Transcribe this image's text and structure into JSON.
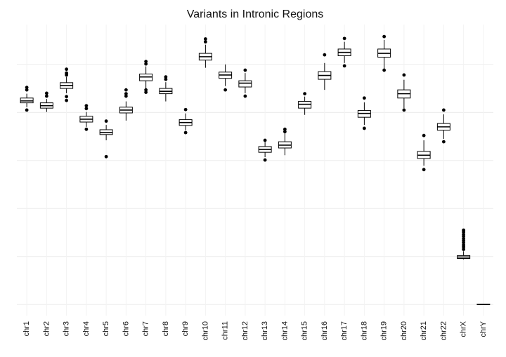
{
  "chart_data": {
    "type": "box",
    "title": "Variants in Intronic Regions",
    "categories": [
      "chr1",
      "chr2",
      "chr3",
      "chr4",
      "chr5",
      "chr6",
      "chr7",
      "chr8",
      "chr9",
      "chr10",
      "chr11",
      "chr12",
      "chr13",
      "chr14",
      "chr15",
      "chr16",
      "chr17",
      "chr18",
      "chr19",
      "chr20",
      "chr21",
      "chr22",
      "chrX",
      "chrY"
    ],
    "boxes": [
      {
        "low": 4.11,
        "q1": 4.2,
        "median": 4.24,
        "q3": 4.3,
        "high": 4.39,
        "outliers": [
          4.52,
          4.47,
          4.05
        ]
      },
      {
        "low": 4.01,
        "q1": 4.09,
        "median": 4.14,
        "q3": 4.2,
        "high": 4.28,
        "outliers": [
          4.4,
          4.34
        ]
      },
      {
        "low": 4.4,
        "q1": 4.5,
        "median": 4.56,
        "q3": 4.62,
        "high": 4.74,
        "outliers": [
          4.9,
          4.82,
          4.78,
          4.33,
          4.25
        ]
      },
      {
        "low": 3.7,
        "q1": 3.8,
        "median": 3.86,
        "q3": 3.92,
        "high": 4.01,
        "outliers": [
          4.14,
          4.08,
          3.65
        ]
      },
      {
        "low": 3.42,
        "q1": 3.54,
        "median": 3.58,
        "q3": 3.64,
        "high": 3.74,
        "outliers": [
          3.82,
          3.08
        ]
      },
      {
        "low": 3.83,
        "q1": 3.99,
        "median": 4.05,
        "q3": 4.11,
        "high": 4.23,
        "outliers": [
          4.47,
          4.39,
          4.34
        ]
      },
      {
        "low": 4.49,
        "q1": 4.66,
        "median": 4.74,
        "q3": 4.8,
        "high": 4.96,
        "outliers": [
          5.06,
          5.01,
          4.47,
          4.42
        ]
      },
      {
        "low": 4.23,
        "q1": 4.39,
        "median": 4.44,
        "q3": 4.5,
        "high": 4.63,
        "outliers": [
          4.74,
          4.69
        ]
      },
      {
        "low": 3.63,
        "q1": 3.73,
        "median": 3.79,
        "q3": 3.85,
        "high": 3.98,
        "outliers": [
          4.06,
          3.58
        ]
      },
      {
        "low": 4.93,
        "q1": 5.09,
        "median": 5.16,
        "q3": 5.23,
        "high": 5.41,
        "outliers": [
          5.53,
          5.47
        ]
      },
      {
        "low": 4.55,
        "q1": 4.71,
        "median": 4.78,
        "q3": 4.84,
        "high": 5.0,
        "outliers": [
          4.47
        ]
      },
      {
        "low": 4.4,
        "q1": 4.53,
        "median": 4.61,
        "q3": 4.66,
        "high": 4.82,
        "outliers": [
          4.88,
          4.34
        ]
      },
      {
        "low": 3.07,
        "q1": 3.17,
        "median": 3.23,
        "q3": 3.29,
        "high": 3.38,
        "outliers": [
          3.42,
          3.01
        ]
      },
      {
        "low": 3.11,
        "q1": 3.26,
        "median": 3.32,
        "q3": 3.39,
        "high": 3.57,
        "outliers": [
          3.65,
          3.6
        ]
      },
      {
        "low": 3.95,
        "q1": 4.09,
        "median": 4.17,
        "q3": 4.23,
        "high": 4.33,
        "outliers": [
          4.39
        ]
      },
      {
        "low": 4.47,
        "q1": 4.69,
        "median": 4.77,
        "q3": 4.85,
        "high": 5.03,
        "outliers": [
          5.2
        ]
      },
      {
        "low": 5.03,
        "q1": 5.18,
        "median": 5.25,
        "q3": 5.32,
        "high": 5.47,
        "outliers": [
          5.54,
          4.97
        ]
      },
      {
        "low": 3.74,
        "q1": 3.9,
        "median": 3.98,
        "q3": 4.04,
        "high": 4.21,
        "outliers": [
          4.3,
          3.67
        ]
      },
      {
        "low": 4.91,
        "q1": 5.15,
        "median": 5.23,
        "q3": 5.32,
        "high": 5.51,
        "outliers": [
          5.58,
          4.88
        ]
      },
      {
        "low": 4.09,
        "q1": 4.3,
        "median": 4.39,
        "q3": 4.47,
        "high": 4.68,
        "outliers": [
          4.78,
          4.05
        ]
      },
      {
        "low": 2.89,
        "q1": 3.04,
        "median": 3.11,
        "q3": 3.19,
        "high": 3.42,
        "outliers": [
          3.52,
          2.81
        ]
      },
      {
        "low": 3.45,
        "q1": 3.63,
        "median": 3.7,
        "q3": 3.77,
        "high": 3.96,
        "outliers": [
          4.05,
          3.39
        ]
      },
      {
        "low": 0.94,
        "q1": 0.96,
        "median": 0.99,
        "q3": 1.02,
        "high": 1.11,
        "outliers": [
          1.55,
          1.51,
          1.46,
          1.42,
          1.37,
          1.33,
          1.29,
          1.24,
          1.2,
          1.15
        ]
      },
      {
        "low": 0,
        "q1": 0,
        "median": 0,
        "q3": 0.01,
        "high": 0.01,
        "outliers": []
      }
    ],
    "ylim": [
      -0.23,
      5.83
    ],
    "yticks": [
      0,
      1,
      2,
      3,
      4,
      5
    ],
    "grid": true,
    "box_fill": "#ffffff",
    "color": "#000000"
  }
}
